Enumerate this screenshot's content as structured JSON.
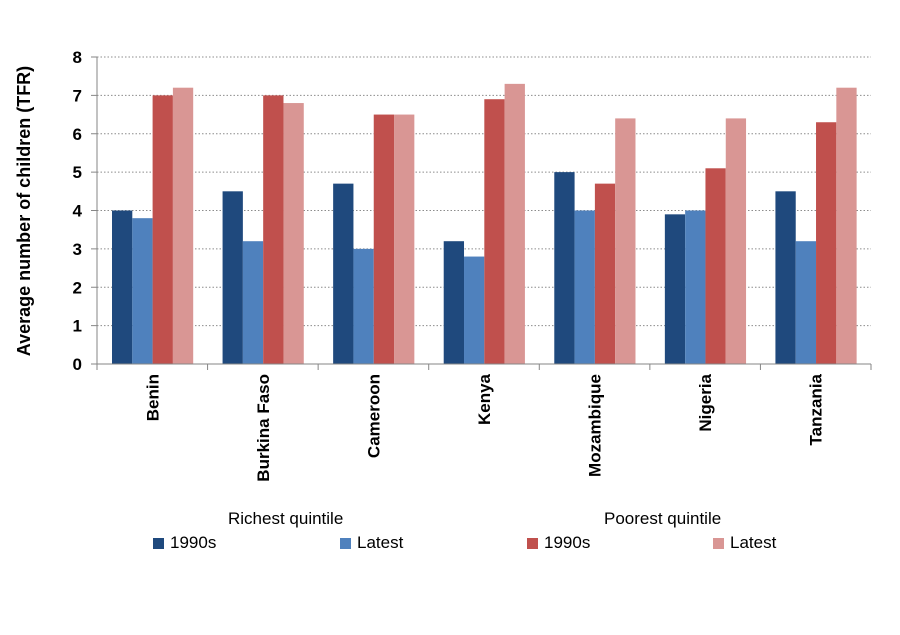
{
  "chart_data": {
    "type": "bar",
    "title": "",
    "xlabel": "",
    "ylabel": "Average number of children (TFR)",
    "ylim": [
      0,
      8
    ],
    "yticks": [
      0,
      1,
      2,
      3,
      4,
      5,
      6,
      7,
      8
    ],
    "grid": true,
    "legend_position": "bottom",
    "categories": [
      "Benin",
      "Burkina Faso",
      "Cameroon",
      "Kenya",
      "Mozambique",
      "Nigeria",
      "Tanzania"
    ],
    "series": [
      {
        "name": "1990s",
        "group": "Richest quintile",
        "color": "#1F497D",
        "values": [
          4.0,
          4.5,
          4.7,
          3.2,
          5.0,
          3.9,
          4.5
        ]
      },
      {
        "name": "Latest",
        "group": "Richest quintile",
        "color": "#4F81BD",
        "values": [
          3.8,
          3.2,
          3.0,
          2.8,
          4.0,
          4.0,
          3.2
        ]
      },
      {
        "name": "1990s",
        "group": "Poorest quintile",
        "color": "#C0504D",
        "values": [
          7.0,
          7.0,
          6.5,
          6.9,
          4.7,
          5.1,
          6.3
        ]
      },
      {
        "name": "Latest",
        "group": "Poorest quintile",
        "color": "#D99694",
        "values": [
          7.2,
          6.8,
          6.5,
          7.3,
          6.4,
          6.4,
          7.2
        ]
      }
    ],
    "legend_groups": [
      "Richest quintile",
      "Poorest quintile"
    ]
  }
}
